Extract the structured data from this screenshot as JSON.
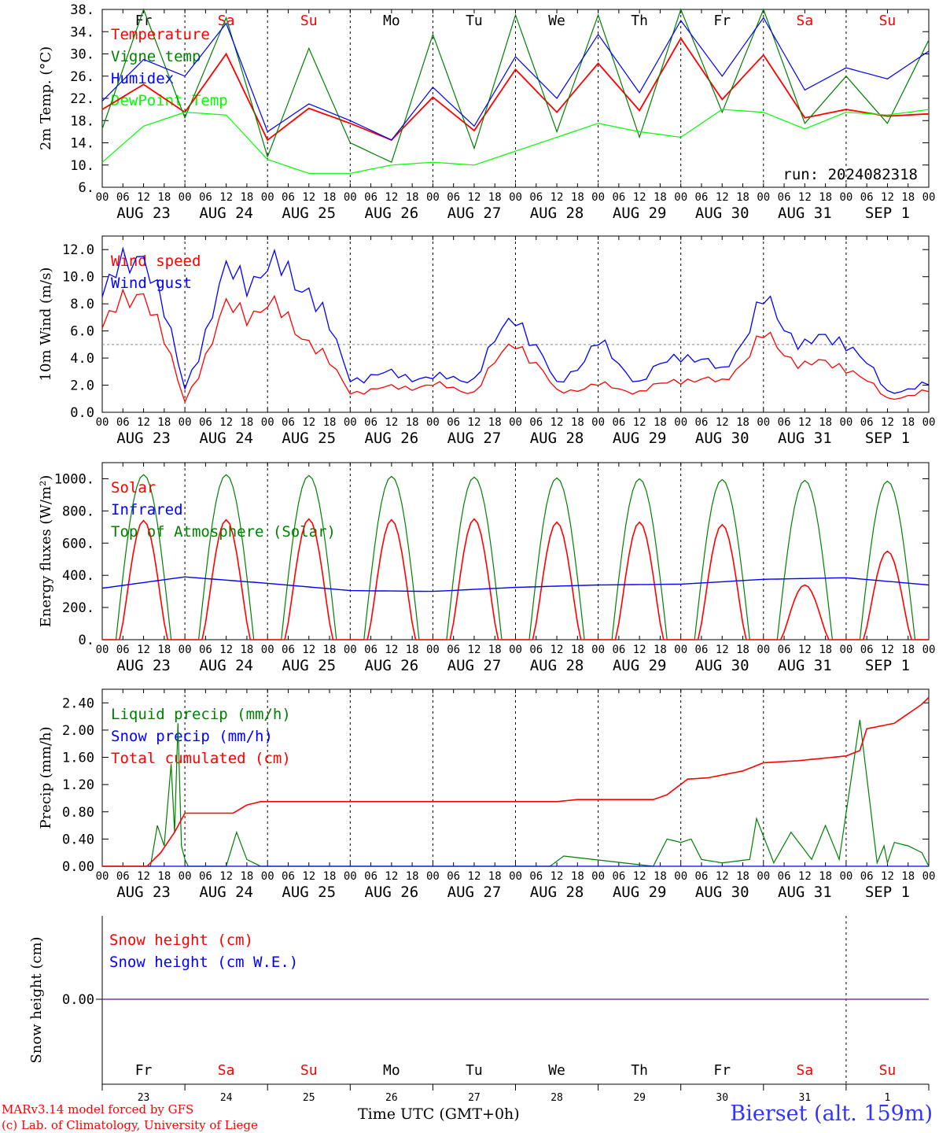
{
  "chart_data": [
    {
      "type": "line",
      "ylabel": "2m Temp. (°C)",
      "ylim": [
        6,
        38
      ],
      "yticks": [
        "6.",
        "10.",
        "14.",
        "18.",
        "22.",
        "26.",
        "30.",
        "34.",
        "38."
      ],
      "run_label": "run: 2024082318",
      "day_labels": [
        "Fr",
        "Sa",
        "Su",
        "Mo",
        "Tu",
        "We",
        "Th",
        "Fr",
        "Sa",
        "Su"
      ],
      "date_labels": [
        "AUG 23",
        "AUG 24",
        "AUG 25",
        "AUG 26",
        "AUG 27",
        "AUG 28",
        "AUG 29",
        "AUG 30",
        "AUG 31",
        "SEP  1"
      ],
      "hour_labels": [
        "00",
        "06",
        "12",
        "18"
      ],
      "x_hours": [
        0,
        12,
        24,
        36,
        48,
        60,
        72,
        84,
        96,
        108,
        120,
        132,
        144,
        156,
        168,
        180,
        192,
        204,
        216,
        228,
        240
      ],
      "series": [
        {
          "name": "Temperature",
          "color": "#ff0000",
          "values": [
            20,
            24.5,
            19.5,
            30,
            14.5,
            20.2,
            17.5,
            14.5,
            22.2,
            16.2,
            27.2,
            19.5,
            28.3,
            19.8,
            32.8,
            21.8,
            29.8,
            18.5,
            20,
            18.8,
            19.2
          ]
        },
        {
          "name": "Vigne temp",
          "color": "#008000",
          "values": [
            16.5,
            38,
            18.5,
            36.5,
            11.5,
            31,
            14,
            10.5,
            33.5,
            13,
            37,
            16,
            37,
            15,
            38,
            19.5,
            38,
            17.5,
            26,
            17.5,
            32.5
          ]
        },
        {
          "name": "Humidex",
          "color": "#0000ff",
          "values": [
            21.5,
            29,
            26,
            35.5,
            16,
            21,
            18,
            14.5,
            24,
            17,
            29.5,
            22,
            33.5,
            23,
            36,
            26,
            36.5,
            23.5,
            27.5,
            25.5,
            30.5
          ]
        },
        {
          "name": "DewPoint Temp",
          "color": "#00ff00",
          "values": [
            10.5,
            17,
            19.5,
            19,
            11,
            8.5,
            8.5,
            10,
            10.5,
            10,
            12.5,
            15,
            17.5,
            16,
            15,
            20,
            19.5,
            16.5,
            19.5,
            19,
            20
          ]
        }
      ]
    },
    {
      "type": "line",
      "ylabel": "10m Wind (m/s)",
      "ylim": [
        0,
        13
      ],
      "yticks": [
        "0.0",
        "2.0",
        "4.0",
        "6.0",
        "8.0",
        "10.0",
        "12.0"
      ],
      "reference_line": 5,
      "date_labels": [
        "AUG 23",
        "AUG 24",
        "AUG 25",
        "AUG 26",
        "AUG 27",
        "AUG 28",
        "AUG 29",
        "AUG 30",
        "AUG 31",
        "SEP  1"
      ],
      "hour_labels": [
        "00",
        "06",
        "12",
        "18"
      ],
      "x_hours": [
        0,
        12,
        24,
        36,
        48,
        60,
        72,
        84,
        96,
        108,
        120,
        132,
        144,
        156,
        168,
        180,
        192,
        204,
        216,
        228,
        240
      ],
      "series": [
        {
          "name": "Wind speed",
          "color": "#ff0000",
          "values": [
            6.2,
            9.5,
            0.8,
            7.5,
            7.8,
            5.5,
            1.5,
            1.8,
            2,
            1.5,
            5.5,
            1.5,
            2,
            1.5,
            2.5,
            2.2,
            5.5,
            3.5,
            3.5,
            1,
            1.5
          ]
        },
        {
          "name": "Wind gust",
          "color": "#0000ff",
          "values": [
            8.5,
            12.5,
            1.8,
            10,
            10.5,
            9.5,
            2.5,
            2.8,
            2.5,
            2.5,
            7.5,
            2,
            5,
            2.2,
            4.5,
            3,
            8,
            5,
            5.5,
            1.5,
            2
          ]
        }
      ]
    },
    {
      "type": "line",
      "ylabel": "Energy fluxes (W/m²)",
      "ylim": [
        0,
        1100
      ],
      "yticks": [
        "0.",
        "200.",
        "400.",
        "600.",
        "800.",
        "1000."
      ],
      "date_labels": [
        "AUG 23",
        "AUG 24",
        "AUG 25",
        "AUG 26",
        "AUG 27",
        "AUG 28",
        "AUG 29",
        "AUG 30",
        "AUG 31",
        "SEP  1"
      ],
      "hour_labels": [
        "00",
        "06",
        "12",
        "18"
      ],
      "daily_peaks": {
        "solar": [
          740,
          745,
          750,
          745,
          750,
          730,
          730,
          715,
          340,
          550
        ],
        "toa": [
          1025,
          1025,
          1020,
          1015,
          1010,
          1005,
          1000,
          995,
          990,
          985
        ]
      },
      "series": [
        {
          "name": "Solar",
          "color": "#ff0000"
        },
        {
          "name": "Infrared",
          "color": "#0000ff",
          "x_hours": [
            0,
            24,
            48,
            72,
            96,
            120,
            144,
            168,
            192,
            216,
            240
          ],
          "values": [
            320,
            390,
            350,
            305,
            300,
            325,
            340,
            345,
            375,
            385,
            340
          ]
        },
        {
          "name": "Top of Atmosphere (Solar)",
          "color": "#008000"
        }
      ]
    },
    {
      "type": "line",
      "ylabel": "Precip (mm/h)",
      "ylim": [
        0,
        2.6
      ],
      "yticks": [
        "0.00",
        "0.40",
        "0.80",
        "1.20",
        "1.60",
        "2.00",
        "2.40"
      ],
      "date_labels": [
        "AUG 23",
        "AUG 24",
        "AUG 25",
        "AUG 26",
        "AUG 27",
        "AUG 28",
        "AUG 29",
        "AUG 30",
        "AUG 31",
        "SEP  1"
      ],
      "hour_labels": [
        "00",
        "06",
        "12",
        "18"
      ],
      "series": [
        {
          "name": "Liquid precip (mm/h)",
          "color": "#008000",
          "x_hours": [
            0,
            14,
            16,
            18,
            20,
            21,
            22,
            23,
            24,
            25,
            26,
            36,
            39,
            42,
            46,
            130,
            134,
            160,
            164,
            168,
            171,
            174,
            180,
            188,
            190,
            195,
            200,
            206,
            210,
            214,
            220,
            225,
            227,
            228,
            230,
            234,
            238,
            240
          ],
          "values": [
            0,
            0,
            0.6,
            0.3,
            1.5,
            0.5,
            2.1,
            0.3,
            0.1,
            0,
            0,
            0,
            0.5,
            0.1,
            0,
            0,
            0.15,
            0,
            0.4,
            0.35,
            0.4,
            0.1,
            0.05,
            0.1,
            0.7,
            0.05,
            0.5,
            0.1,
            0.6,
            0.1,
            2.15,
            0.05,
            0.3,
            0.05,
            0.35,
            0.3,
            0.2,
            0
          ]
        },
        {
          "name": "Snow precip (mm/h)",
          "color": "#0000ff",
          "values": [
            0
          ]
        },
        {
          "name": "Total cumulated (cm)",
          "color": "#ff0000",
          "x_hours": [
            0,
            13,
            17,
            21,
            24,
            38,
            42,
            46,
            132,
            138,
            160,
            164,
            170,
            176,
            186,
            192,
            202,
            216,
            220,
            222,
            230,
            238,
            240
          ],
          "values": [
            0,
            0,
            0.2,
            0.5,
            0.78,
            0.78,
            0.9,
            0.95,
            0.95,
            0.98,
            0.98,
            1.05,
            1.28,
            1.3,
            1.4,
            1.52,
            1.55,
            1.62,
            1.7,
            2.02,
            2.1,
            2.38,
            2.48
          ]
        }
      ]
    },
    {
      "type": "line",
      "ylabel": "Snow height (cm)",
      "yticks": [
        "0.00"
      ],
      "day_labels": [
        "Fr",
        "Sa",
        "Su",
        "Mo",
        "Tu",
        "We",
        "Th",
        "Fr",
        "Sa",
        "Su"
      ],
      "day_numbers": [
        "23",
        "24",
        "25",
        "26",
        "27",
        "28",
        "29",
        "30",
        "31",
        "1"
      ],
      "xlabel": "Time UTC (GMT+0h)",
      "series": [
        {
          "name": "Snow height (cm)",
          "color": "#ff0000",
          "values": [
            0
          ]
        },
        {
          "name": "Snow height (cm W.E.)",
          "color": "#0000ff",
          "values": [
            0
          ]
        }
      ]
    }
  ],
  "footer": {
    "model": "MARv3.14 model forced by GFS",
    "credit": "(c) Lab. of Climatology, University of Liege",
    "station": "Bierset (alt. 159m)",
    "xlabel": "Time UTC (GMT+0h)"
  },
  "colors": {
    "weekday": "#000000",
    "weekend": "#ff0000"
  }
}
